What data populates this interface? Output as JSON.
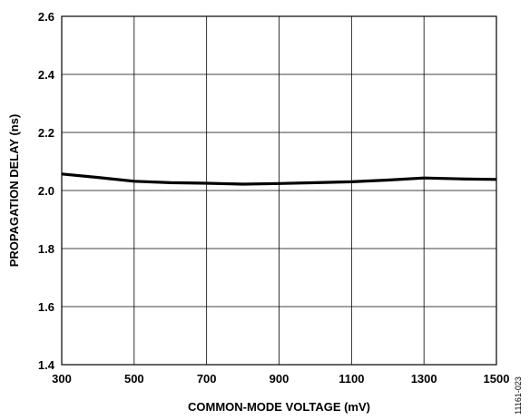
{
  "chart_data": {
    "type": "line",
    "title": "",
    "xlabel": "COMMON-MODE VOLTAGE (mV)",
    "ylabel": "PROPAGATION DELAY (ns)",
    "xlim": [
      300,
      1500
    ],
    "ylim": [
      1.4,
      2.6
    ],
    "x_ticks": [
      300,
      500,
      700,
      900,
      1100,
      1300,
      1500
    ],
    "x_tick_labels": [
      "300",
      "500",
      "700",
      "900",
      "1100",
      "1300",
      "1500"
    ],
    "y_ticks": [
      1.4,
      1.6,
      1.8,
      2.0,
      2.2,
      2.4,
      2.6
    ],
    "y_tick_labels": [
      "1.4",
      "1.6",
      "1.8",
      "2.0",
      "2.2",
      "2.4",
      "2.6"
    ],
    "grid": true,
    "legend": "none",
    "series": [
      {
        "color": "#000000",
        "x": [
          300,
          400,
          500,
          600,
          700,
          800,
          900,
          1000,
          1100,
          1200,
          1300,
          1400,
          1500
        ],
        "y": [
          2.057,
          2.045,
          2.032,
          2.027,
          2.025,
          2.022,
          2.024,
          2.027,
          2.03,
          2.036,
          2.043,
          2.04,
          2.038
        ]
      }
    ],
    "figure_id": "11161-023"
  }
}
